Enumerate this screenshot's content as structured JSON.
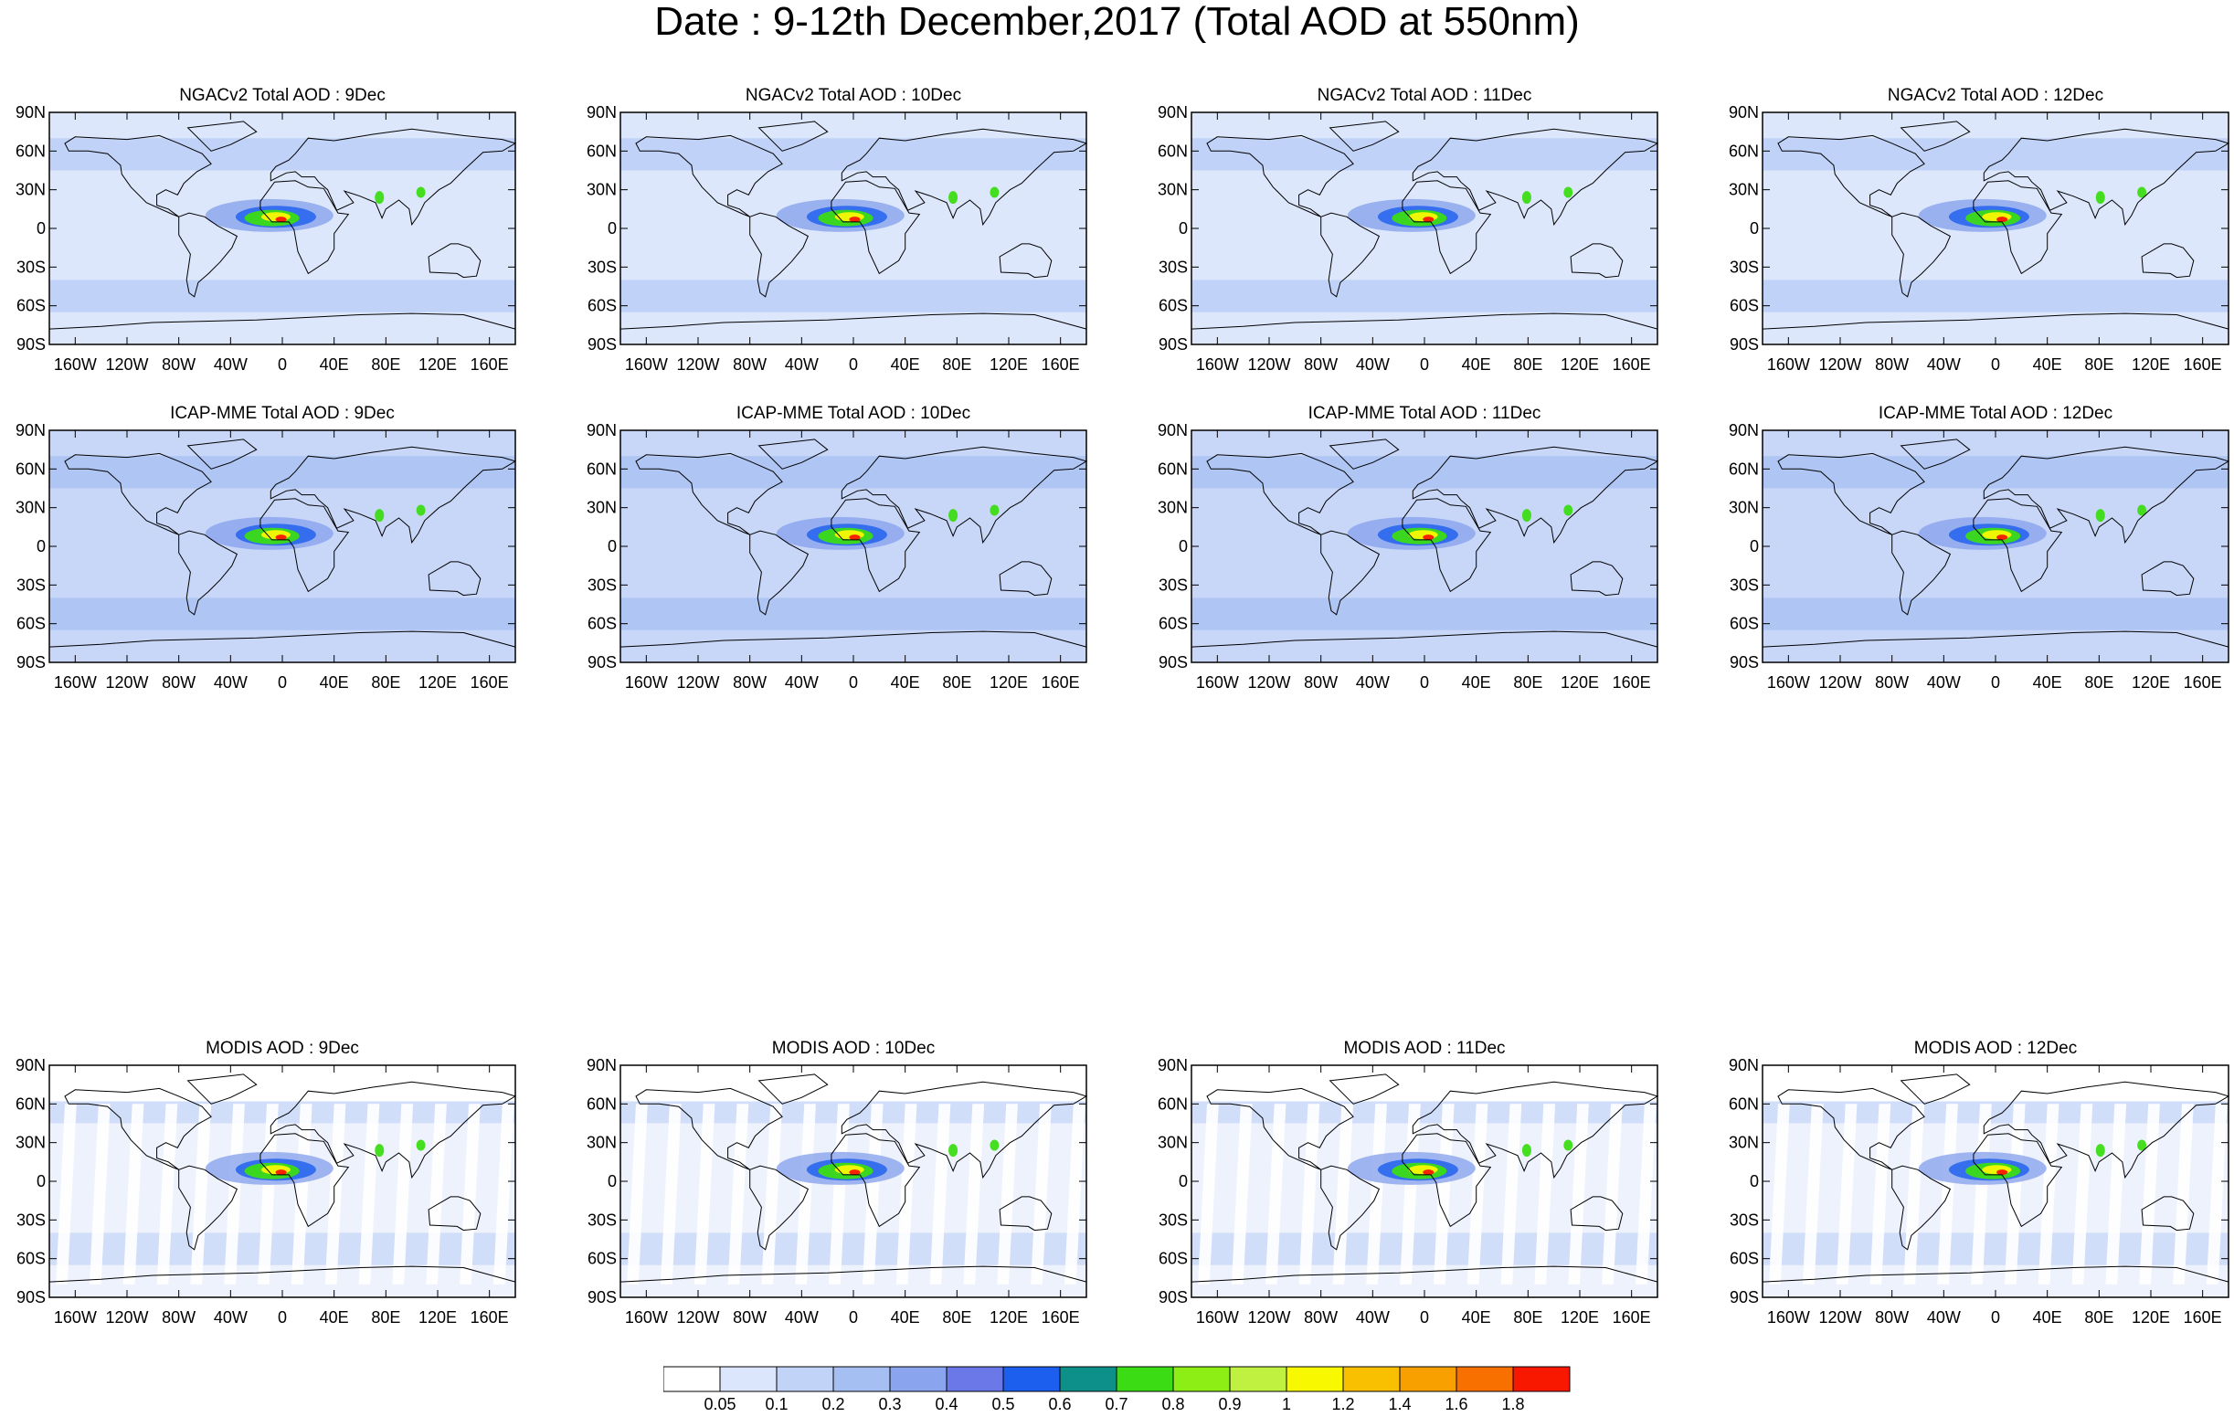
{
  "title": "Date : 9-12th December,2017 (Total AOD at 550nm)",
  "lat_labels": [
    "90N",
    "60N",
    "30N",
    "0",
    "30S",
    "60S",
    "90S"
  ],
  "lon_labels": [
    "160W",
    "120W",
    "80W",
    "40W",
    "0",
    "40E",
    "80E",
    "120E",
    "160E"
  ],
  "rows": [
    {
      "model": "NGACv2",
      "panels": [
        {
          "title": "NGACv2 Total AOD : 9Dec"
        },
        {
          "title": "NGACv2 Total AOD : 10Dec"
        },
        {
          "title": "NGACv2 Total AOD : 11Dec"
        },
        {
          "title": "NGACv2 Total AOD : 12Dec"
        }
      ]
    },
    {
      "model": "ICAP-MME",
      "panels": [
        {
          "title": "ICAP-MME Total AOD : 9Dec"
        },
        {
          "title": "ICAP-MME Total AOD : 10Dec"
        },
        {
          "title": "ICAP-MME Total AOD : 11Dec"
        },
        {
          "title": "ICAP-MME Total AOD : 12Dec"
        }
      ]
    },
    {
      "model": "MODIS",
      "panels": [
        {
          "title": "MODIS AOD : 9Dec"
        },
        {
          "title": "MODIS AOD : 10Dec"
        },
        {
          "title": "MODIS AOD : 11Dec"
        },
        {
          "title": "MODIS AOD : 12Dec"
        }
      ]
    }
  ],
  "colorbar": {
    "labels": [
      "0.05",
      "0.1",
      "0.2",
      "0.3",
      "0.4",
      "0.5",
      "0.6",
      "0.7",
      "0.8",
      "0.9",
      "1",
      "1.2",
      "1.4",
      "1.6",
      "1.8"
    ],
    "colors": [
      "#ffffff",
      "#dbe6fc",
      "#c2d3f8",
      "#a6bff2",
      "#8aa4ee",
      "#6a78e8",
      "#1c5eee",
      "#0e908a",
      "#3cdc14",
      "#8cee14",
      "#c0f040",
      "#f8f800",
      "#f8c000",
      "#f8a000",
      "#f87000",
      "#f81800"
    ]
  }
}
